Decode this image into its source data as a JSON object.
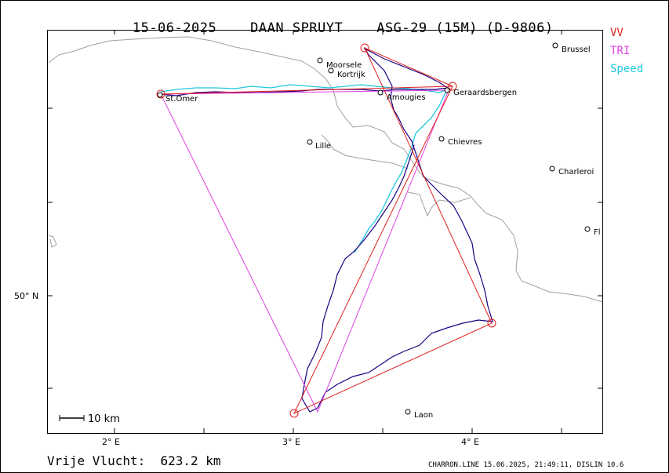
{
  "header": {
    "date": "15-06-2025",
    "pilot": "DAAN SPRUYT",
    "glider": "ASG-29 (15M) (D-9806)"
  },
  "legend": [
    {
      "label": "VV",
      "color": "#e02020"
    },
    {
      "label": "TRI",
      "color": "#e040e0"
    },
    {
      "label": "Speed",
      "color": "#20c8e0"
    }
  ],
  "axes": {
    "lon_labels": [
      "2° E",
      "3° E",
      "4° E"
    ],
    "lat_labels": [
      "50° N"
    ]
  },
  "scale": {
    "label": "10 km"
  },
  "cities": [
    {
      "name": "Brussel"
    },
    {
      "name": "Moorsele"
    },
    {
      "name": "Kortrijk"
    },
    {
      "name": "St.Omer"
    },
    {
      "name": "Amougies"
    },
    {
      "name": "Geraardsbergen"
    },
    {
      "name": "Lille"
    },
    {
      "name": "Chievres"
    },
    {
      "name": "Charleroi"
    },
    {
      "name": "Fl"
    },
    {
      "name": "Laon"
    }
  ],
  "footer": {
    "distance": "Vrije Vlucht:  623.2 km",
    "software": "CHARRON.LINE 15.06.2025, 21:49:11, DISLIN 10.6"
  },
  "colors": {
    "track": "#1a0080",
    "border": "#a0a0a0",
    "vv": "#e02020",
    "tri": "#e040e0",
    "speed": "#20c8e0"
  }
}
